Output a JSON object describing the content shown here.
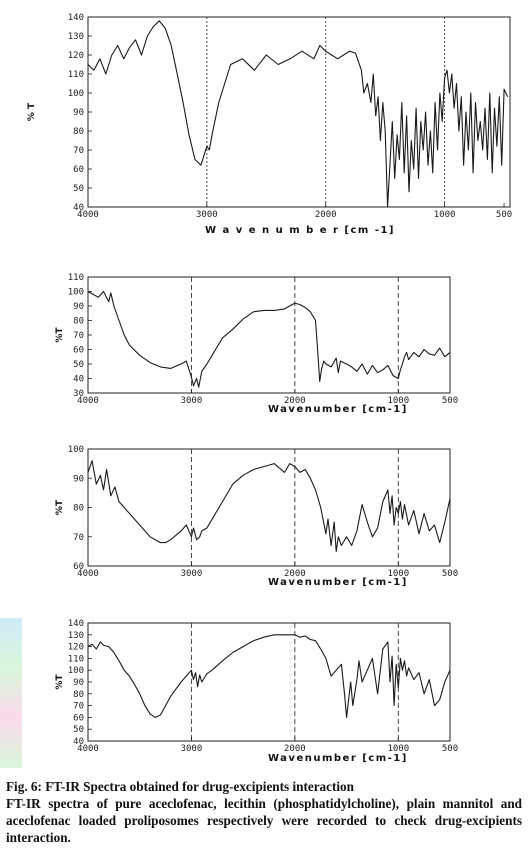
{
  "chart_data": [
    {
      "type": "line",
      "xlabel": "W a v e n u m b e r [cm -1]",
      "ylabel": "% T",
      "xlim": [
        4000,
        450
      ],
      "ylim": [
        40,
        140
      ],
      "xticks": [
        "4000",
        "3000",
        "2000",
        "1000",
        "500"
      ],
      "yticks": [
        "40",
        "50",
        "60",
        "70",
        "80",
        "90",
        "100",
        "110",
        "120",
        "130",
        "140"
      ],
      "xtick_values": [
        4000,
        3000,
        2000,
        1000,
        500
      ],
      "ytick_values": [
        40,
        50,
        60,
        70,
        80,
        90,
        100,
        110,
        120,
        130,
        140
      ],
      "refline_x": [
        3000,
        2000,
        1000
      ],
      "series": [
        {
          "x": [
            4000,
            3950,
            3900,
            3850,
            3800,
            3750,
            3700,
            3650,
            3600,
            3550,
            3500,
            3450,
            3400,
            3350,
            3300,
            3250,
            3200,
            3150,
            3100,
            3050,
            3000,
            2980,
            2950,
            2900,
            2800,
            2700,
            2600,
            2500,
            2400,
            2300,
            2200,
            2100,
            2050,
            2000,
            1950,
            1900,
            1850,
            1800,
            1750,
            1700,
            1680,
            1650,
            1620,
            1600,
            1580,
            1560,
            1540,
            1520,
            1500,
            1480,
            1460,
            1440,
            1420,
            1400,
            1380,
            1360,
            1340,
            1320,
            1300,
            1280,
            1260,
            1240,
            1220,
            1200,
            1180,
            1160,
            1140,
            1120,
            1100,
            1080,
            1060,
            1040,
            1020,
            1000,
            980,
            960,
            940,
            920,
            900,
            880,
            860,
            840,
            820,
            800,
            780,
            760,
            740,
            720,
            700,
            680,
            660,
            640,
            620,
            600,
            580,
            560,
            540,
            520,
            500,
            470
          ],
          "y": [
            115,
            112,
            118,
            110,
            120,
            125,
            118,
            124,
            128,
            120,
            130,
            135,
            138,
            134,
            125,
            110,
            95,
            78,
            65,
            62,
            72,
            70,
            80,
            95,
            115,
            118,
            112,
            120,
            115,
            118,
            122,
            118,
            125,
            122,
            120,
            118,
            120,
            122,
            121,
            112,
            100,
            105,
            95,
            110,
            88,
            98,
            75,
            95,
            80,
            40,
            62,
            85,
            55,
            78,
            65,
            95,
            58,
            88,
            48,
            75,
            60,
            92,
            55,
            85,
            70,
            90,
            62,
            80,
            58,
            95,
            70,
            100,
            85,
            108,
            112,
            100,
            110,
            92,
            105,
            80,
            98,
            62,
            90,
            70,
            100,
            58,
            95,
            75,
            85,
            70,
            92,
            65,
            100,
            58,
            92,
            72,
            98,
            62,
            102,
            98
          ]
        }
      ]
    },
    {
      "type": "line",
      "xlabel": "Wavenumber [cm-1]",
      "ylabel": "%T",
      "xlim": [
        4000,
        500
      ],
      "ylim": [
        30,
        110
      ],
      "xticks": [
        "4000",
        "3000",
        "2000",
        "1000",
        "500"
      ],
      "yticks": [
        "30",
        "40",
        "50",
        "60",
        "70",
        "80",
        "90",
        "100",
        "110"
      ],
      "xtick_values": [
        4000,
        3000,
        2000,
        1000,
        500
      ],
      "ytick_values": [
        30,
        40,
        50,
        60,
        70,
        80,
        90,
        100,
        110
      ],
      "refline_x": [
        3000,
        2000,
        1000
      ],
      "series": [
        {
          "x": [
            4000,
            3950,
            3900,
            3850,
            3800,
            3780,
            3750,
            3700,
            3650,
            3600,
            3500,
            3400,
            3300,
            3200,
            3100,
            3050,
            3000,
            2980,
            2950,
            2930,
            2900,
            2850,
            2800,
            2700,
            2600,
            2500,
            2400,
            2300,
            2200,
            2100,
            2050,
            2000,
            1950,
            1900,
            1850,
            1800,
            1780,
            1760,
            1740,
            1720,
            1700,
            1650,
            1600,
            1580,
            1560,
            1500,
            1450,
            1400,
            1350,
            1300,
            1250,
            1200,
            1150,
            1100,
            1050,
            1000,
            980,
            960,
            940,
            920,
            900,
            850,
            800,
            750,
            700,
            650,
            600,
            550,
            500
          ],
          "y": [
            100,
            98,
            96,
            100,
            93,
            99,
            90,
            80,
            70,
            63,
            56,
            51,
            48,
            47,
            50,
            52,
            41,
            35,
            40,
            34,
            45,
            50,
            56,
            68,
            74,
            81,
            86,
            87,
            87,
            88,
            90,
            92,
            91,
            89,
            86,
            80,
            60,
            38,
            47,
            52,
            50,
            48,
            54,
            44,
            52,
            50,
            48,
            45,
            50,
            43,
            49,
            44,
            46,
            49,
            42,
            40,
            46,
            50,
            55,
            58,
            53,
            58,
            55,
            60,
            57,
            56,
            61,
            55,
            58
          ]
        }
      ]
    },
    {
      "type": "line",
      "xlabel": "Wavenumber [cm-1]",
      "ylabel": "%T",
      "xlim": [
        4000,
        500
      ],
      "ylim": [
        60,
        100
      ],
      "xticks": [
        "4000",
        "3000",
        "2000",
        "1000",
        "500"
      ],
      "yticks": [
        "60",
        "70",
        "80",
        "90",
        "100"
      ],
      "xtick_values": [
        4000,
        3000,
        2000,
        1000,
        500
      ],
      "ytick_values": [
        60,
        70,
        80,
        90,
        100
      ],
      "refline_x": [
        3000,
        2000,
        1000
      ],
      "series": [
        {
          "x": [
            4000,
            3960,
            3920,
            3880,
            3850,
            3820,
            3780,
            3740,
            3700,
            3600,
            3500,
            3400,
            3300,
            3250,
            3200,
            3100,
            3050,
            3000,
            2980,
            2950,
            2920,
            2900,
            2850,
            2800,
            2700,
            2600,
            2500,
            2400,
            2300,
            2200,
            2100,
            2050,
            2000,
            1950,
            1900,
            1850,
            1800,
            1750,
            1700,
            1680,
            1650,
            1620,
            1600,
            1580,
            1550,
            1500,
            1450,
            1400,
            1350,
            1300,
            1250,
            1200,
            1150,
            1100,
            1080,
            1060,
            1040,
            1020,
            1000,
            980,
            960,
            940,
            900,
            850,
            800,
            750,
            700,
            650,
            600,
            550,
            500
          ],
          "y": [
            92,
            96,
            88,
            91,
            86,
            93,
            84,
            87,
            82,
            78,
            74,
            70,
            68,
            68,
            69,
            72,
            74,
            70,
            73,
            69,
            70,
            72,
            73,
            76,
            82,
            88,
            91,
            93,
            94,
            95,
            92,
            95,
            94,
            92,
            93,
            90,
            86,
            80,
            71,
            76,
            67,
            75,
            65,
            70,
            67,
            70,
            67,
            72,
            81,
            75,
            70,
            73,
            82,
            86,
            78,
            84,
            74,
            80,
            78,
            82,
            76,
            81,
            74,
            79,
            71,
            78,
            72,
            74,
            68,
            75,
            83
          ]
        }
      ]
    },
    {
      "type": "line",
      "xlabel": "Wavenumber [cm-1]",
      "ylabel": "%T",
      "xlim": [
        4000,
        500
      ],
      "ylim": [
        40,
        140
      ],
      "xticks": [
        "4000",
        "3000",
        "2000",
        "1000",
        "500"
      ],
      "yticks": [
        "40",
        "50",
        "60",
        "70",
        "80",
        "90",
        "100",
        "110",
        "120",
        "130",
        "140"
      ],
      "xtick_values": [
        4000,
        3000,
        2000,
        1000,
        500
      ],
      "ytick_values": [
        40,
        50,
        60,
        70,
        80,
        90,
        100,
        110,
        120,
        130,
        140
      ],
      "refline_x": [
        3000,
        2000,
        1000
      ],
      "series": [
        {
          "x": [
            4000,
            3960,
            3920,
            3880,
            3850,
            3800,
            3750,
            3700,
            3650,
            3600,
            3550,
            3500,
            3450,
            3400,
            3350,
            3300,
            3250,
            3200,
            3150,
            3100,
            3050,
            3000,
            2980,
            2960,
            2940,
            2920,
            2900,
            2850,
            2800,
            2700,
            2600,
            2500,
            2400,
            2300,
            2200,
            2100,
            2000,
            1950,
            1900,
            1850,
            1800,
            1750,
            1700,
            1650,
            1600,
            1550,
            1520,
            1500,
            1480,
            1460,
            1440,
            1400,
            1380,
            1350,
            1300,
            1250,
            1200,
            1150,
            1100,
            1080,
            1060,
            1040,
            1020,
            1000,
            980,
            960,
            940,
            920,
            900,
            850,
            800,
            750,
            700,
            650,
            600,
            550,
            500
          ],
          "y": [
            120,
            122,
            118,
            124,
            121,
            120,
            115,
            108,
            100,
            95,
            88,
            80,
            70,
            63,
            60,
            62,
            70,
            78,
            84,
            90,
            95,
            100,
            92,
            98,
            86,
            96,
            90,
            97,
            100,
            108,
            115,
            120,
            125,
            128,
            130,
            130,
            130,
            128,
            129,
            126,
            125,
            118,
            110,
            95,
            100,
            105,
            80,
            60,
            75,
            90,
            70,
            92,
            108,
            90,
            100,
            110,
            80,
            118,
            124,
            90,
            112,
            70,
            105,
            85,
            110,
            100,
            108,
            95,
            102,
            92,
            98,
            80,
            92,
            70,
            75,
            90,
            100
          ]
        }
      ]
    }
  ],
  "caption": {
    "title": "Fig. 6: FT-IR Spectra obtained for drug-excipients interaction",
    "body": "FT-IR spectra of pure aceclofenac, lecithin (phosphatidylcholine), plain mannitol and aceclofenac loaded proliposomes respectively were recorded to check drug-excipients interaction."
  }
}
